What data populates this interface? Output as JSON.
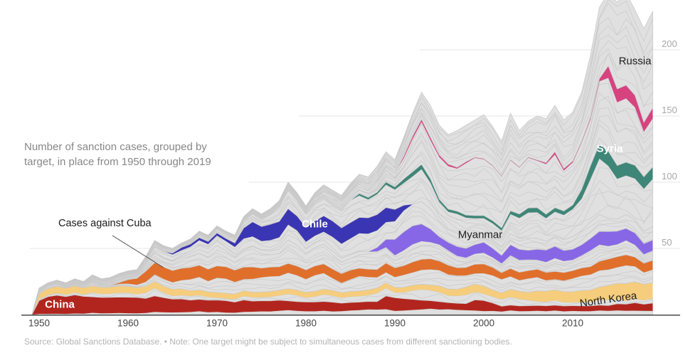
{
  "subtitle": "Number of sanction cases, grouped by target, in place from 1950 through 2019",
  "source_note": "Source: Global Sanctions Database. • Note: One target might be subject to simultaneous cases from different sanctioning bodies.",
  "annotation": {
    "text": "Cases against Cuba"
  },
  "axes": {
    "x_ticks": [
      1950,
      1960,
      1970,
      1980,
      1990,
      2000,
      2010
    ],
    "y_ticks": [
      50,
      100,
      150,
      200
    ]
  },
  "colors": {
    "gray_fill": "#e0e0e0",
    "gray_line": "#c9c9c9",
    "grid": "#e6e6e6",
    "axis": "#3a3a3a",
    "x_tick_text": "#454545",
    "y_tick_text": "#a8a8a8",
    "annotation_line": "#4a4a4a"
  },
  "labels": {
    "china": {
      "text": "China",
      "series": "china",
      "year": 1952,
      "mode": "center",
      "dx": 4,
      "dy": 0,
      "theme": "light",
      "rotate": 0
    },
    "chile": {
      "text": "Chile",
      "series": "chile",
      "year": 1981,
      "mode": "center",
      "dx": 0,
      "dy": -6,
      "theme": "light",
      "rotate": 0
    },
    "syria": {
      "text": "Syria",
      "series": "syria",
      "year": 2014,
      "mode": "center",
      "dx": 2,
      "dy": -14,
      "theme": "light",
      "rotate": 0
    },
    "myanmar": {
      "text": "Myanmar",
      "series": "myanmar",
      "year": 2000,
      "mode": "above",
      "dx": -5,
      "dy": -10,
      "theme": "dark",
      "rotate": 0
    },
    "russia": {
      "text": "Russia",
      "series": "russia",
      "year": 2017,
      "mode": "above",
      "dx": 0,
      "dy": -48,
      "theme": "dark",
      "rotate": 0
    },
    "north_korea": {
      "text": "North Korea",
      "series": "north_korea",
      "year": 2014,
      "mode": "center",
      "dx": 0,
      "dy": 10,
      "theme": "dark",
      "rotate": -8
    }
  },
  "chart_data": {
    "type": "area",
    "stacked": true,
    "title": "Number of sanction cases, grouped by target, in place from 1950 through 2019",
    "x_range": [
      1950,
      2019
    ],
    "y_ticks": [
      50,
      100,
      150,
      200
    ],
    "grid": true,
    "years": [
      1950,
      1951,
      1952,
      1953,
      1954,
      1955,
      1956,
      1957,
      1958,
      1959,
      1960,
      1961,
      1962,
      1963,
      1964,
      1965,
      1966,
      1967,
      1968,
      1969,
      1970,
      1971,
      1972,
      1973,
      1974,
      1975,
      1976,
      1977,
      1978,
      1979,
      1980,
      1981,
      1982,
      1983,
      1984,
      1985,
      1986,
      1987,
      1988,
      1989,
      1990,
      1991,
      1992,
      1993,
      1994,
      1995,
      1996,
      1997,
      1998,
      1999,
      2000,
      2001,
      2002,
      2003,
      2004,
      2005,
      2006,
      2007,
      2008,
      2009,
      2010,
      2011,
      2012,
      2013,
      2014,
      2015,
      2016,
      2017,
      2018,
      2019
    ],
    "total": [
      20,
      24,
      26,
      24,
      27,
      25,
      30,
      27,
      28,
      31,
      33,
      34,
      44,
      56,
      52,
      50,
      54,
      57,
      63,
      60,
      67,
      63,
      60,
      74,
      80,
      76,
      80,
      86,
      100,
      92,
      82,
      92,
      98,
      94,
      90,
      99,
      106,
      104,
      112,
      123,
      117,
      134,
      152,
      168,
      158,
      143,
      136,
      139,
      143,
      147,
      151,
      142,
      131,
      152,
      139,
      146,
      150,
      148,
      158,
      147,
      153,
      168,
      196,
      232,
      243,
      236,
      243,
      230,
      216,
      229
    ],
    "series": [
      {
        "name": "china",
        "label": "China",
        "color": "#b2251e",
        "values": [
          10,
          13,
          14,
          13,
          14,
          13,
          12,
          12,
          12,
          12,
          12,
          12,
          11,
          12,
          11,
          10,
          10,
          9,
          9,
          9,
          9,
          9,
          8,
          9,
          8,
          8,
          8,
          8,
          7,
          7,
          7,
          7,
          7,
          7,
          6,
          6,
          6,
          6,
          6,
          10,
          10,
          9,
          8,
          7,
          6,
          6,
          5,
          5,
          5,
          8,
          8,
          6,
          4,
          4,
          4,
          4,
          4,
          4,
          4,
          4,
          4,
          4,
          4,
          4,
          4,
          5,
          5,
          6,
          5,
          6
        ]
      },
      {
        "name": "north_korea",
        "label": "North Korea",
        "color": "#f6cd7c",
        "values": [
          4,
          5,
          5,
          5,
          5,
          5,
          5,
          5,
          5,
          5,
          5,
          5,
          5,
          5,
          5,
          5,
          5,
          4,
          4,
          4,
          4,
          4,
          4,
          4,
          4,
          4,
          4,
          4,
          4,
          4,
          4,
          4,
          4,
          4,
          4,
          4,
          4,
          4,
          4,
          4,
          4,
          4,
          4,
          4,
          4,
          5,
          5,
          5,
          6,
          6,
          6,
          5,
          5,
          6,
          6,
          6,
          8,
          8,
          8,
          8,
          8,
          9,
          9,
          10,
          11,
          12,
          13,
          13,
          12,
          12
        ]
      },
      {
        "name": "cuba",
        "label": "Cuba",
        "color": "#e06f2c",
        "values": [
          0,
          0,
          0,
          0,
          0,
          0,
          0,
          0,
          0,
          1,
          3,
          5,
          8,
          9,
          9,
          9,
          9,
          9,
          9,
          9,
          9,
          9,
          9,
          9,
          9,
          7,
          7,
          7,
          7,
          7,
          7,
          7,
          7,
          7,
          7,
          7,
          6,
          6,
          6,
          7,
          7,
          7,
          8,
          8,
          8,
          7,
          7,
          6,
          6,
          7,
          7,
          6,
          5,
          6,
          6,
          6,
          6,
          6,
          6,
          6,
          6,
          6,
          6,
          7,
          8,
          8,
          8,
          7,
          7,
          7
        ]
      },
      {
        "name": "myanmar",
        "label": "Myanmar",
        "color": "#8767e6",
        "values": [
          0,
          0,
          0,
          0,
          0,
          0,
          0,
          0,
          0,
          0,
          0,
          0,
          0,
          0,
          0,
          0,
          0,
          0,
          0,
          0,
          0,
          0,
          0,
          0,
          0,
          0,
          0,
          0,
          0,
          0,
          0,
          0,
          0,
          0,
          0,
          0,
          0,
          0,
          3,
          6,
          12,
          14,
          14,
          13,
          10,
          6,
          6,
          7,
          7,
          7,
          8,
          7,
          6,
          8,
          8,
          7,
          8,
          9,
          9,
          8,
          8,
          8,
          9,
          10,
          11,
          10,
          9,
          9,
          8,
          8
        ]
      },
      {
        "name": "chile",
        "label": "Chile",
        "color": "#3a35b2",
        "values": [
          0,
          0,
          0,
          0,
          0,
          0,
          0,
          0,
          0,
          0,
          0,
          0,
          0,
          0,
          0,
          1,
          2,
          2,
          2,
          2,
          2,
          2,
          3,
          8,
          11,
          11,
          12,
          12,
          12,
          11,
          11,
          11,
          12,
          12,
          12,
          12,
          12,
          12,
          12,
          11,
          9,
          4,
          0,
          0,
          0,
          0,
          0,
          0,
          0,
          0,
          0,
          0,
          0,
          0,
          0,
          0,
          0,
          0,
          0,
          0,
          0,
          0,
          0,
          0,
          0,
          0,
          0,
          0,
          0,
          0
        ]
      },
      {
        "name": "syria",
        "label": "Syria",
        "color": "#3e8677",
        "values": [
          0,
          0,
          0,
          0,
          0,
          0,
          0,
          0,
          0,
          0,
          0,
          0,
          0,
          0,
          0,
          0,
          0,
          0,
          0,
          0,
          0,
          0,
          0,
          0,
          0,
          0,
          0,
          0,
          0,
          0,
          0,
          0,
          0,
          0,
          0,
          0,
          1.5,
          1.5,
          1.5,
          2,
          2,
          3,
          3.5,
          3.5,
          3,
          2,
          2,
          2,
          2,
          2,
          2,
          2,
          2,
          2.5,
          3,
          3.5,
          3.5,
          3,
          3,
          3,
          3,
          7,
          10,
          11,
          11,
          10,
          10,
          10,
          9,
          9
        ]
      },
      {
        "name": "russia",
        "label": "Russia",
        "color": "#d6437f",
        "values": [
          0,
          0,
          0,
          0,
          0,
          0,
          0,
          0,
          0,
          0,
          0,
          0,
          0,
          0,
          0,
          0,
          0,
          0,
          0,
          0,
          0,
          0,
          0,
          0,
          0,
          0,
          0,
          0,
          0,
          0,
          0,
          0,
          0,
          0,
          0,
          0,
          0,
          0,
          0,
          0,
          0,
          1.5,
          2,
          2,
          2,
          1.5,
          1.5,
          1,
          1,
          0.5,
          0.5,
          0.5,
          0.5,
          0.5,
          0.5,
          0.5,
          0.5,
          1,
          2,
          1.5,
          1,
          1,
          1.5,
          2,
          9,
          10,
          10,
          9,
          7,
          8
        ]
      }
    ],
    "other_targets_gray": {
      "note": "remaining unlabeled targets drawn as thin gray bands between highlighted series",
      "key_years": [
        1950,
        1960,
        1970,
        1980,
        1990,
        2000,
        2010,
        2019
      ],
      "segments": {
        "g0": [
          1,
          2,
          2,
          2.5,
          3,
          3,
          2.5,
          2.5
        ],
        "g1": [
          2,
          6,
          2,
          4,
          4.5,
          6,
          2.5,
          3
        ],
        "g2": [
          3,
          3,
          11,
          10,
          7,
          10,
          9,
          11
        ],
        "g3": [
          1,
          5,
          14,
          13,
          10,
          8,
          9,
          8
        ],
        "g4": [
          1,
          3,
          8,
          8.5,
          13,
          7,
          9,
          9
        ],
        "g5": [
          1,
          2,
          3,
          11,
          15,
          12,
          22,
          34
        ],
        "g6": [
          0.5,
          1,
          1,
          4,
          10,
          43,
          33,
          41
        ],
        "g7": [
          0.5,
          1,
          1,
          2,
          9,
          30,
          34,
          66
        ]
      }
    },
    "stack_order": [
      "g0",
      "china",
      "g1",
      "north_korea",
      "g2",
      "cuba",
      "g3",
      "myanmar",
      "g4",
      "chile",
      "g5",
      "syria",
      "g6",
      "russia",
      "g7"
    ]
  }
}
